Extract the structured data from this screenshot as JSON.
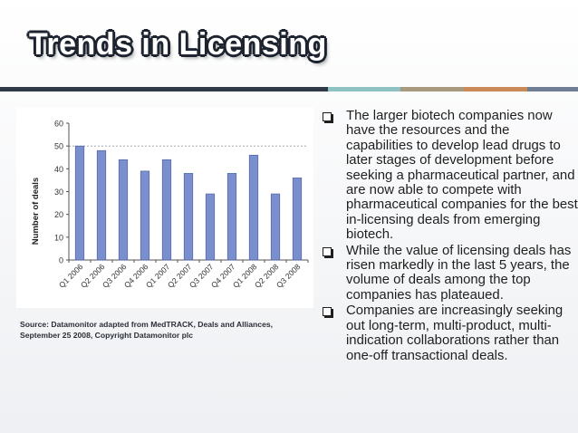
{
  "slide": {
    "title": "Trends in Licensing",
    "colors": {
      "band_dark": "#2f3947",
      "band_teal": "#8fc2c3",
      "band_tan": "#a89b7d",
      "band_orange": "#c98a58",
      "band_steel": "#6f7e94",
      "bar_fill": "#7a8fd0",
      "bar_stroke": "#4a5d9e"
    }
  },
  "source_note": "Source: Datamonitor adapted from MedTRACK, Deals and Alliances, September 25 2008, Copyright Datamonitor plc",
  "bullets": [
    "The larger biotech companies now have the resources and the capabilities to develop lead drugs to later stages of development before seeking a pharmaceutical partner, and are now able to compete with pharmaceutical companies for the best in-licensing deals from emerging biotech.",
    "While the value of licensing deals has risen markedly in the last 5 years, the volume of deals among the top companies has plateaued.",
    "Companies are increasingly seeking out long-term, multi-product, multi-indication collaborations rather than one-off transactional deals."
  ],
  "chart_data": {
    "type": "bar",
    "categories": [
      "Q1 2006",
      "Q2 2006",
      "Q3 2006",
      "Q4 2006",
      "Q1 2007",
      "Q2 2007",
      "Q3 2007",
      "Q4 2007",
      "Q1 2008",
      "Q2 2008",
      "Q3 2008"
    ],
    "values": [
      50,
      48,
      44,
      39,
      44,
      38,
      29,
      38,
      46,
      29,
      36
    ],
    "xlabel": "",
    "ylabel": "Number of deals",
    "ylim": [
      0,
      60
    ],
    "yticks": [
      0,
      10,
      20,
      30,
      40,
      50,
      60
    ],
    "grid": "dashed horizontal at 50"
  }
}
